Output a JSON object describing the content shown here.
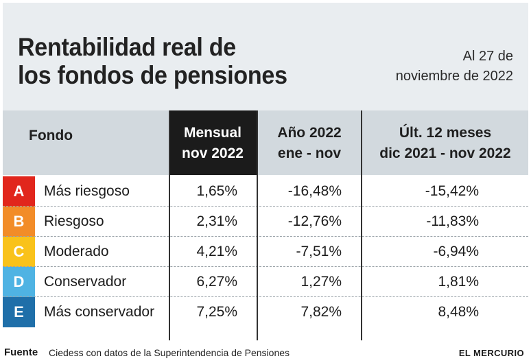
{
  "title": [
    "Rentabilidad real de",
    "los fondos de pensiones"
  ],
  "date": [
    "Al 27 de",
    "noviembre de 2022"
  ],
  "columns": {
    "fondo": "Fondo",
    "mensual": [
      "Mensual",
      "nov 2022"
    ],
    "anio": [
      "Año 2022",
      "ene - nov"
    ],
    "ult": [
      "Últ. 12 meses",
      "dic 2021 - nov 2022"
    ]
  },
  "rows": [
    {
      "letter": "A",
      "name": "Más riesgoso",
      "mensual": "1,65%",
      "anio": "-16,48%",
      "ult": "-15,42%",
      "color": "#e1261c"
    },
    {
      "letter": "B",
      "name": "Riesgoso",
      "mensual": "2,31%",
      "anio": "-12,76%",
      "ult": "-11,83%",
      "color": "#f28c28"
    },
    {
      "letter": "C",
      "name": "Moderado",
      "mensual": "4,21%",
      "anio": "-7,51%",
      "ult": "-6,94%",
      "color": "#f9c21a"
    },
    {
      "letter": "D",
      "name": "Conservador",
      "mensual": "6,27%",
      "anio": "1,27%",
      "ult": "1,81%",
      "color": "#4fb3e3"
    },
    {
      "letter": "E",
      "name": "Más conservador",
      "mensual": "7,25%",
      "anio": "7,82%",
      "ult": "8,48%",
      "color": "#1f6fa9"
    }
  ],
  "footer": {
    "label": "Fuente",
    "source": "Ciedess con datos de la Superintendencia de Pensiones",
    "brand": "EL MERCURIO"
  }
}
